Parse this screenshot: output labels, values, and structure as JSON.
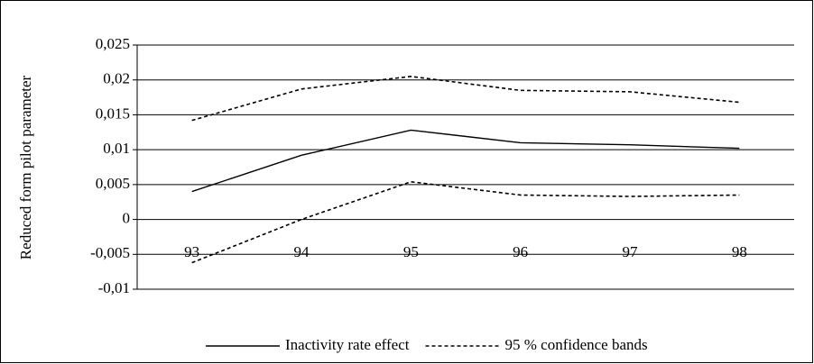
{
  "chart_data": {
    "type": "line",
    "y_label": "Reduced form pilot parameter",
    "categories": [
      "93",
      "94",
      "95",
      "96",
      "97",
      "98"
    ],
    "series": [
      {
        "name": "Inactivity rate effect",
        "color": "#000000",
        "dashed": false,
        "values": [
          0.004,
          0.0092,
          0.0128,
          0.011,
          0.0107,
          0.0102
        ]
      },
      {
        "name": "95 % confidence bands",
        "color": "#000000",
        "dashed": true,
        "upper": [
          0.0142,
          0.0187,
          0.0205,
          0.0185,
          0.0183,
          0.0168
        ],
        "lower": [
          -0.0062,
          0.0,
          0.0054,
          0.0035,
          0.0033,
          0.0035
        ]
      }
    ],
    "ylim": [
      -0.01,
      0.025
    ],
    "yticks": [
      {
        "value": 0.025,
        "label": "0,025"
      },
      {
        "value": 0.02,
        "label": "0,02"
      },
      {
        "value": 0.015,
        "label": "0,015"
      },
      {
        "value": 0.01,
        "label": "0,01"
      },
      {
        "value": 0.005,
        "label": "0,005"
      },
      0,
      {
        "value": -0.005,
        "label": "-0,005"
      },
      {
        "value": -0.01,
        "label": "-0,01"
      }
    ],
    "grid": true
  }
}
